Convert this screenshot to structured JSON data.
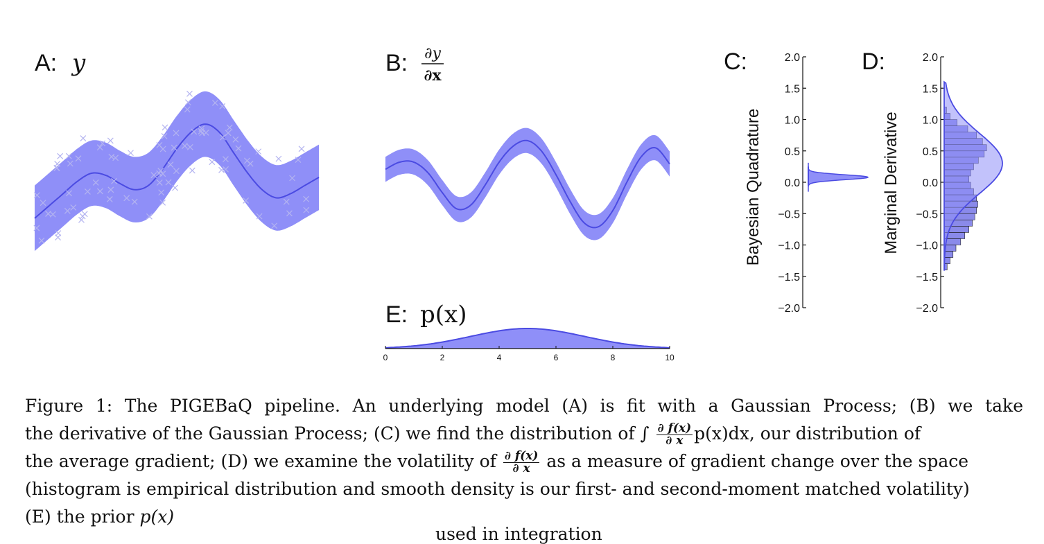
{
  "panels": {
    "A": {
      "letter": "A:",
      "math": "y"
    },
    "B": {
      "letter": "B:",
      "math_num": "∂y",
      "math_den": "∂x"
    },
    "C": {
      "letter": "C:",
      "ylabel": "Bayesian Quadrature"
    },
    "D": {
      "letter": "D:",
      "ylabel": "Marginal Derivative"
    },
    "E": {
      "letter": "E:",
      "math": "p(x)"
    }
  },
  "colors": {
    "band": "#8f8ff8",
    "line": "#4b4be2",
    "marker": "#b4b4f0",
    "hist": "#2a2ad8"
  },
  "chart_data": [
    {
      "id": "A",
      "type": "line",
      "title": "A: y",
      "x": [
        0,
        0.5,
        1,
        1.5,
        2,
        2.5,
        3,
        3.5,
        4,
        4.5,
        5,
        5.5,
        6,
        6.5,
        7,
        7.5,
        8,
        8.5,
        9,
        9.5,
        10
      ],
      "series": [
        {
          "values": [
            -0.9,
            -0.6,
            -0.3,
            0.0,
            0.2,
            0.15,
            -0.05,
            -0.2,
            -0.1,
            0.3,
            0.8,
            1.2,
            1.4,
            1.2,
            0.7,
            0.2,
            -0.2,
            -0.4,
            -0.3,
            -0.1,
            0.1
          ]
        }
      ],
      "band_halfwidth": 0.8,
      "scatter_marker": "x"
    },
    {
      "id": "B",
      "type": "line",
      "title": "B: ∂y/∂x",
      "x": [
        0,
        0.5,
        1,
        1.5,
        2,
        2.5,
        3,
        3.5,
        4,
        4.5,
        5,
        5.5,
        6,
        6.5,
        7,
        7.5,
        8,
        8.5,
        9,
        9.5,
        10
      ],
      "series": [
        {
          "values": [
            0.35,
            0.55,
            0.55,
            0.25,
            -0.3,
            -0.75,
            -0.65,
            -0.1,
            0.55,
            1.0,
            1.15,
            0.85,
            0.2,
            -0.55,
            -1.15,
            -1.25,
            -0.8,
            0.0,
            0.7,
            0.95,
            0.5
          ]
        }
      ],
      "band_halfwidth": 0.35
    },
    {
      "id": "C",
      "type": "area",
      "ylabel": "Bayesian Quadrature",
      "ylim": [
        -2.0,
        2.0
      ],
      "yticks": [
        "2.0",
        "1.5",
        "1.0",
        "0.5",
        "0.0",
        "−0.5",
        "−1.0",
        "−1.5",
        "−2.0"
      ],
      "distribution": {
        "mean": 0.08,
        "sd": 0.04
      }
    },
    {
      "id": "D",
      "type": "bar",
      "ylabel": "Marginal Derivative",
      "ylim": [
        -2.0,
        2.0
      ],
      "yticks": [
        "2.0",
        "1.5",
        "1.0",
        "0.5",
        "0.0",
        "−0.5",
        "−1.0",
        "−1.5",
        "−2.0"
      ],
      "histogram": {
        "bin_centers": [
          -1.35,
          -1.25,
          -1.15,
          -1.05,
          -0.95,
          -0.85,
          -0.75,
          -0.65,
          -0.55,
          -0.45,
          -0.35,
          -0.25,
          -0.15,
          -0.05,
          0.05,
          0.15,
          0.25,
          0.35,
          0.45,
          0.55,
          0.65,
          0.75,
          0.85,
          0.95,
          1.05,
          1.15
        ],
        "counts": [
          0.05,
          0.1,
          0.15,
          0.2,
          0.28,
          0.35,
          0.42,
          0.48,
          0.52,
          0.55,
          0.57,
          0.55,
          0.5,
          0.45,
          0.42,
          0.45,
          0.5,
          0.58,
          0.68,
          0.72,
          0.65,
          0.55,
          0.4,
          0.22,
          0.1,
          0.04
        ]
      },
      "density": {
        "mean": 0.3,
        "sd": 0.48
      }
    },
    {
      "id": "E",
      "type": "area",
      "title": "E: p(x)",
      "xlim": [
        0,
        10
      ],
      "xticks": [
        "0",
        "2",
        "4",
        "6",
        "8",
        "10"
      ],
      "distribution": {
        "mean": 5.0,
        "sd": 2.0
      }
    }
  ],
  "caption": {
    "line1_a": "Figure 1: The PIGEBaQ pipeline. An underlying model (A) is fit with a Gaussian Process; (B) we take",
    "line2_a": "the derivative of the Gaussian Process; (C) we find the distribution of ∫",
    "frac_num": "∂ f(x)",
    "frac_den": "∂ x",
    "line2_b": "p(x)dx, our distribution of",
    "line3_a": "the average gradient; (D) we examine the volatility of",
    "line3_b": "as a measure of gradient change over the space",
    "line4": "(histogram is empirical distribution and smooth density is our first- and second-moment matched volatility)",
    "line5_a": "(E) the prior",
    "line5_m": "p(x)",
    "cutoff": "used in integration"
  }
}
